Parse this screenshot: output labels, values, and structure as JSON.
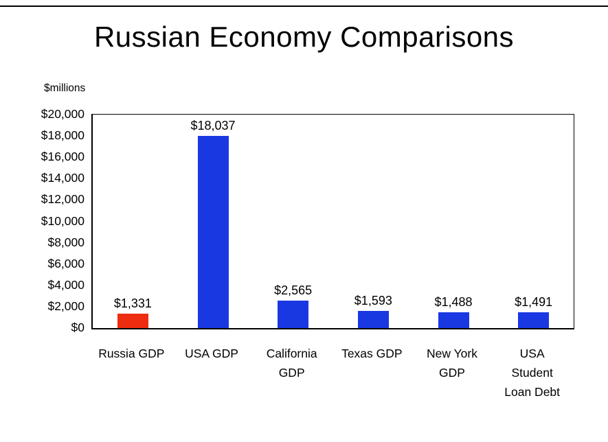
{
  "chart_data": {
    "type": "bar",
    "title": "Russian Economy Comparisons",
    "ylabel": "$millions",
    "xlabel": "",
    "categories": [
      "Russia GDP",
      "USA GDP",
      "California GDP",
      "Texas GDP",
      "New York GDP",
      "USA Student Loan Debt"
    ],
    "category_label_lines": [
      [
        "Russia GDP"
      ],
      [
        "USA GDP"
      ],
      [
        "California",
        "GDP"
      ],
      [
        "Texas GDP"
      ],
      [
        "New York",
        "GDP"
      ],
      [
        "USA",
        "Student",
        "Loan Debt"
      ]
    ],
    "values": [
      1331,
      18037,
      2565,
      1593,
      1488,
      1491
    ],
    "data_labels": [
      "$1,331",
      "$18,037",
      "$2,565",
      "$1,593",
      "$1,488",
      "$1,491"
    ],
    "bar_colors": [
      "#ee2d10",
      "#1a38e2",
      "#1a38e2",
      "#1a38e2",
      "#1a38e2",
      "#1a38e2"
    ],
    "ylim": [
      0,
      20000
    ],
    "ytick_step": 2000,
    "ytick_labels": [
      "$0",
      "$2,000",
      "$4,000",
      "$6,000",
      "$8,000",
      "$10,000",
      "$12,000",
      "$14,000",
      "$16,000",
      "$18,000",
      "$20,000"
    ],
    "grid": false,
    "legend": false,
    "axis_color": "#000000"
  }
}
